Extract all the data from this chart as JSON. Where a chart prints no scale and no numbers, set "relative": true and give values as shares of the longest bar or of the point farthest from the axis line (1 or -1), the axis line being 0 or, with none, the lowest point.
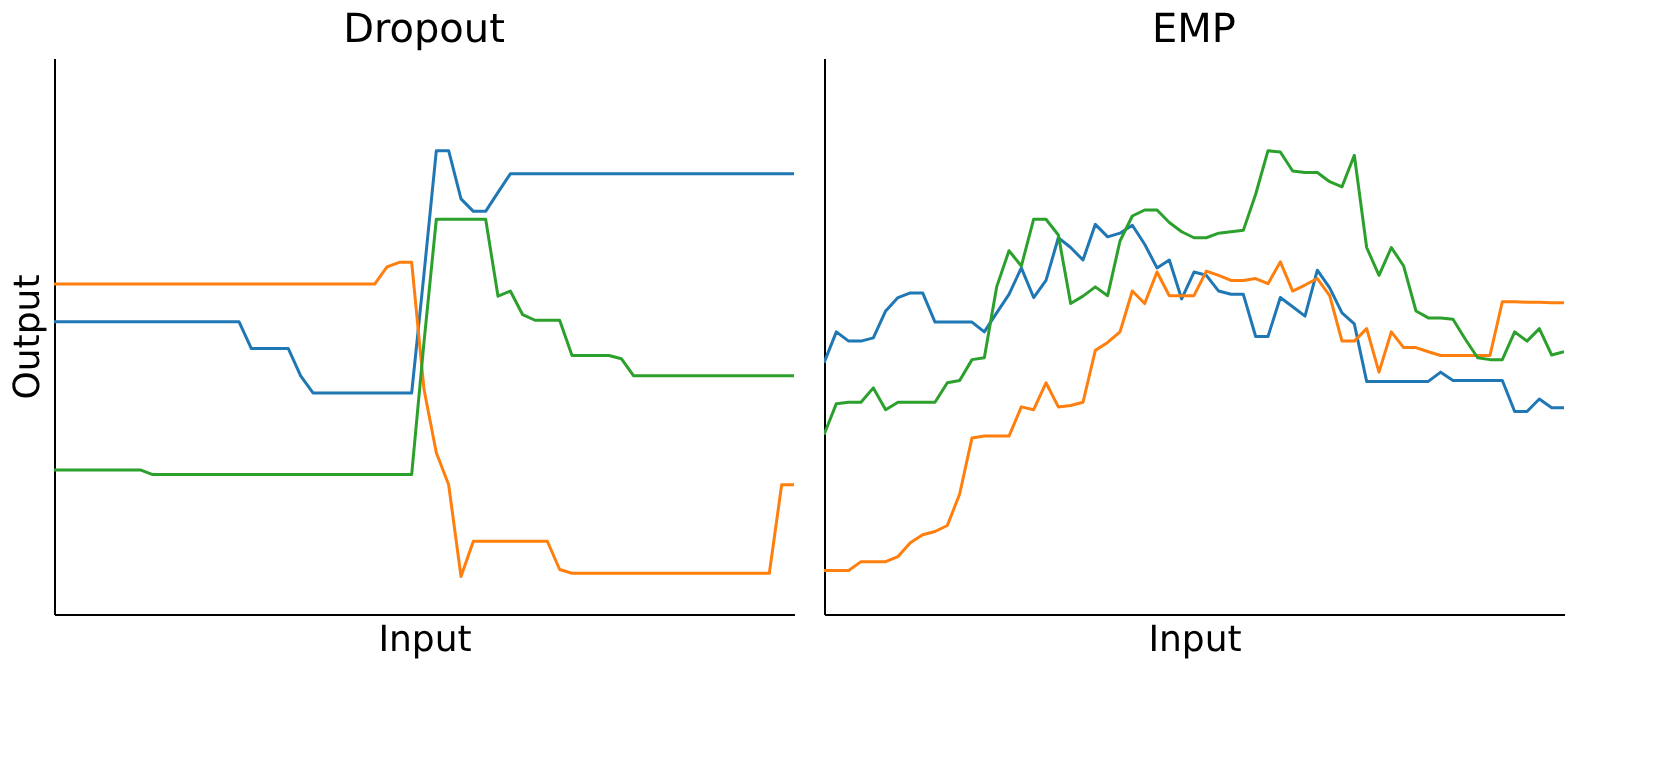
{
  "chart_data": [
    {
      "type": "line",
      "title": "Dropout",
      "xlabel": "Input",
      "ylabel": "Output",
      "relative": true,
      "tick_labels": false,
      "grid": false,
      "legend": false,
      "categories": [
        null,
        null,
        null,
        null,
        null,
        null,
        null,
        null,
        null,
        null,
        null,
        null,
        null,
        null,
        null,
        null,
        null,
        null,
        null,
        null,
        null,
        null,
        null,
        null,
        null,
        null,
        null,
        null,
        null,
        null,
        null,
        null,
        null,
        null,
        null,
        null,
        null,
        null,
        null,
        null,
        null,
        null,
        null,
        null,
        null,
        null,
        null,
        null,
        null,
        null,
        null,
        null,
        null,
        null,
        null,
        null,
        null,
        null,
        null,
        null,
        null
      ],
      "series": [
        {
          "color": "#1f77b4",
          "values": [
            0.631,
            0.631,
            0.631,
            0.631,
            0.631,
            0.631,
            0.631,
            0.631,
            0.631,
            0.631,
            0.631,
            0.631,
            0.631,
            0.631,
            0.631,
            0.631,
            0.573,
            0.573,
            0.573,
            0.573,
            0.514,
            0.477,
            0.477,
            0.477,
            0.477,
            0.477,
            0.477,
            0.477,
            0.477,
            0.477,
            0.734,
            1.0,
            1.0,
            0.896,
            0.869,
            0.869,
            0.91,
            0.95,
            0.95,
            0.95,
            0.95,
            0.95,
            0.95,
            0.95,
            0.95,
            0.95,
            0.95,
            0.95,
            0.95,
            0.95,
            0.95,
            0.95,
            0.95,
            0.95,
            0.95,
            0.95,
            0.95,
            0.95,
            0.95,
            0.95,
            0.95
          ]
        },
        {
          "color": "#ff7f0e",
          "values": [
            0.712,
            0.712,
            0.712,
            0.712,
            0.712,
            0.712,
            0.712,
            0.712,
            0.712,
            0.712,
            0.712,
            0.712,
            0.712,
            0.712,
            0.712,
            0.712,
            0.712,
            0.712,
            0.712,
            0.712,
            0.712,
            0.712,
            0.712,
            0.712,
            0.712,
            0.712,
            0.712,
            0.749,
            0.759,
            0.759,
            0.485,
            0.348,
            0.279,
            0.081,
            0.157,
            0.157,
            0.157,
            0.157,
            0.157,
            0.157,
            0.157,
            0.096,
            0.088,
            0.088,
            0.088,
            0.088,
            0.088,
            0.088,
            0.088,
            0.088,
            0.088,
            0.088,
            0.088,
            0.088,
            0.088,
            0.088,
            0.088,
            0.088,
            0.088,
            0.279,
            0.279
          ]
        },
        {
          "color": "#2ca02c",
          "values": [
            0.311,
            0.311,
            0.311,
            0.311,
            0.311,
            0.311,
            0.311,
            0.311,
            0.301,
            0.301,
            0.301,
            0.301,
            0.301,
            0.301,
            0.301,
            0.301,
            0.301,
            0.301,
            0.301,
            0.301,
            0.301,
            0.301,
            0.301,
            0.301,
            0.301,
            0.301,
            0.301,
            0.301,
            0.301,
            0.301,
            0.587,
            0.852,
            0.852,
            0.852,
            0.852,
            0.852,
            0.686,
            0.697,
            0.646,
            0.634,
            0.634,
            0.634,
            0.558,
            0.558,
            0.558,
            0.558,
            0.551,
            0.514,
            0.514,
            0.514,
            0.514,
            0.514,
            0.514,
            0.514,
            0.514,
            0.514,
            0.514,
            0.514,
            0.514,
            0.514,
            0.514
          ]
        }
      ]
    },
    {
      "type": "line",
      "title": "EMP",
      "xlabel": "Input",
      "relative": true,
      "tick_labels": false,
      "grid": false,
      "legend": false,
      "categories": [
        null,
        null,
        null,
        null,
        null,
        null,
        null,
        null,
        null,
        null,
        null,
        null,
        null,
        null,
        null,
        null,
        null,
        null,
        null,
        null,
        null,
        null,
        null,
        null,
        null,
        null,
        null,
        null,
        null,
        null,
        null,
        null,
        null,
        null,
        null,
        null,
        null,
        null,
        null,
        null,
        null,
        null,
        null,
        null,
        null,
        null,
        null,
        null,
        null,
        null,
        null,
        null,
        null,
        null,
        null,
        null,
        null,
        null,
        null,
        null,
        null
      ],
      "series": [
        {
          "color": "#1f77b4",
          "values": [
            0.542,
            0.609,
            0.589,
            0.589,
            0.596,
            0.654,
            0.683,
            0.693,
            0.693,
            0.63,
            0.63,
            0.63,
            0.63,
            0.609,
            0.65,
            0.69,
            0.747,
            0.683,
            0.72,
            0.812,
            0.791,
            0.764,
            0.841,
            0.814,
            0.822,
            0.839,
            0.798,
            0.747,
            0.764,
            0.68,
            0.738,
            0.731,
            0.697,
            0.69,
            0.69,
            0.599,
            0.599,
            0.683,
            0.663,
            0.643,
            0.742,
            0.704,
            0.65,
            0.626,
            0.502,
            0.502,
            0.502,
            0.502,
            0.502,
            0.502,
            0.522,
            0.504,
            0.504,
            0.504,
            0.504,
            0.504,
            0.437,
            0.437,
            0.464,
            0.445,
            0.445
          ]
        },
        {
          "color": "#ff7f0e",
          "values": [
            0.094,
            0.094,
            0.094,
            0.113,
            0.113,
            0.113,
            0.124,
            0.154,
            0.171,
            0.178,
            0.191,
            0.259,
            0.38,
            0.384,
            0.384,
            0.384,
            0.447,
            0.441,
            0.499,
            0.447,
            0.45,
            0.457,
            0.569,
            0.586,
            0.609,
            0.697,
            0.67,
            0.738,
            0.687,
            0.687,
            0.687,
            0.74,
            0.731,
            0.72,
            0.72,
            0.724,
            0.713,
            0.76,
            0.697,
            0.71,
            0.724,
            0.687,
            0.589,
            0.589,
            0.616,
            0.522,
            0.609,
            0.575,
            0.575,
            0.566,
            0.558,
            0.558,
            0.558,
            0.558,
            0.558,
            0.674,
            0.674,
            0.673,
            0.673,
            0.672,
            0.672
          ]
        },
        {
          "color": "#2ca02c",
          "values": [
            0.387,
            0.454,
            0.457,
            0.457,
            0.488,
            0.441,
            0.457,
            0.457,
            0.457,
            0.457,
            0.499,
            0.504,
            0.549,
            0.553,
            0.706,
            0.784,
            0.751,
            0.852,
            0.852,
            0.818,
            0.67,
            0.686,
            0.706,
            0.687,
            0.805,
            0.859,
            0.872,
            0.872,
            0.845,
            0.825,
            0.812,
            0.812,
            0.822,
            0.825,
            0.828,
            0.906,
            1.0,
            0.997,
            0.956,
            0.953,
            0.953,
            0.933,
            0.922,
            0.99,
            0.791,
            0.731,
            0.791,
            0.751,
            0.654,
            0.639,
            0.639,
            0.636,
            0.593,
            0.553,
            0.549,
            0.549,
            0.609,
            0.589,
            0.616,
            0.559,
            0.566
          ]
        }
      ]
    }
  ]
}
